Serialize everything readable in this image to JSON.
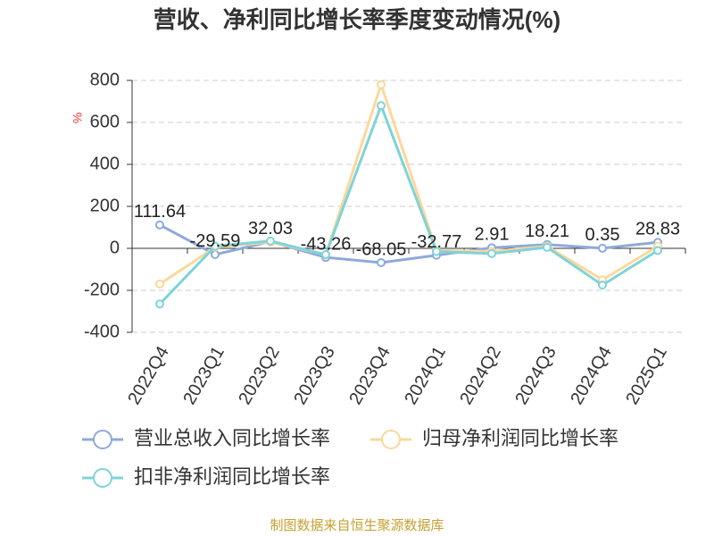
{
  "chart_data": {
    "type": "line",
    "title": "营收、净利同比增长率季度变动情况(%)",
    "ylabel": "%",
    "categories": [
      "2022Q4",
      "2023Q1",
      "2023Q2",
      "2023Q3",
      "2023Q4",
      "2024Q1",
      "2024Q2",
      "2024Q3",
      "2024Q4",
      "2025Q1"
    ],
    "series": [
      {
        "name": "营业总收入同比增长率",
        "color": "#8eaadb",
        "values": [
          111.64,
          -29.59,
          32.03,
          -43.26,
          -68.05,
          -32.77,
          2.91,
          18.21,
          0.35,
          28.83
        ],
        "show_labels": true
      },
      {
        "name": "归母净利润同比增长率",
        "color": "#fbd89b",
        "values": [
          -170,
          5,
          30,
          -30,
          780,
          -10,
          -15,
          10,
          -150,
          10
        ]
      },
      {
        "name": "扣非净利润同比增长率",
        "color": "#7fd3d8",
        "values": [
          -265,
          10,
          35,
          -30,
          680,
          -15,
          -25,
          5,
          -175,
          -10
        ]
      }
    ],
    "ylim": [
      -400,
      800
    ],
    "yticks": [
      -400,
      -200,
      0,
      200,
      400,
      600,
      800
    ],
    "grid": true,
    "source": "制图数据来自恒生聚源数据库"
  }
}
